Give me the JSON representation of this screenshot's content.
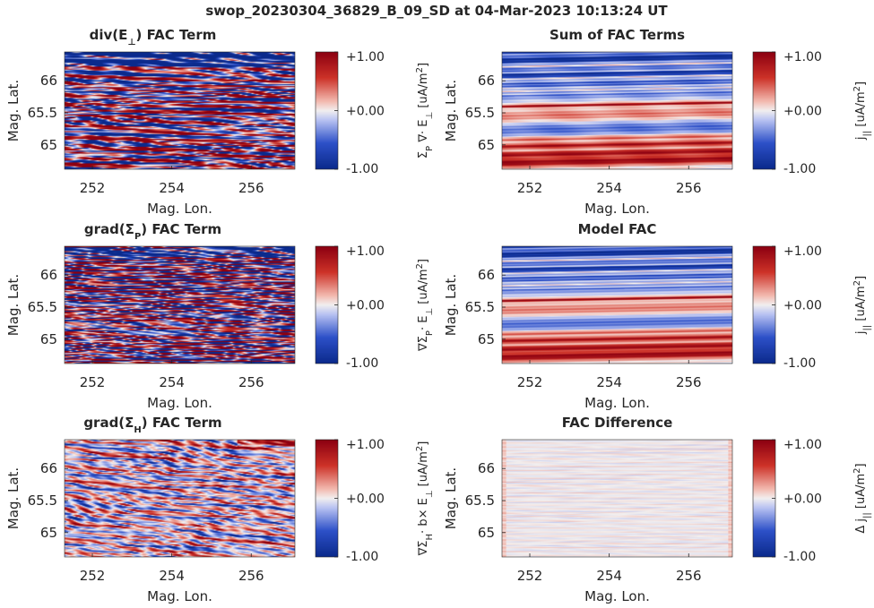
{
  "figure": {
    "title": "swop_20230304_36829_B_09_SD at 04-Mar-2023 10:13:24 UT"
  },
  "colors": {
    "neg": "#0b2a8c",
    "mid": "#f2efef",
    "pos": "#8c0011",
    "axis": "#262626"
  },
  "chart_data": [
    {
      "type": "heatmap",
      "title": "div(E⊥) FAC Term",
      "title_parts": {
        "pre": "div(E",
        "sub": "⊥",
        "post": ") FAC Term"
      },
      "xlabel": "Mag. Lon.",
      "ylabel": "Mag. Lat.",
      "xlim": [
        251.3,
        257.1
      ],
      "ylim": [
        64.62,
        66.45
      ],
      "xticks": [
        "252",
        "254",
        "256"
      ],
      "yticks": [
        "65",
        "65.5",
        "66"
      ],
      "clim": [
        -1,
        1
      ],
      "cticks": [
        "-1.00",
        "+0.00",
        "+1.00"
      ],
      "clabel": "ΣP ∇· E⊥ [uA/m2]",
      "clabel_parts": [
        [
          "Σ",
          ""
        ],
        [
          "P",
          "sub"
        ],
        [
          " ∇· E",
          ""
        ],
        [
          "⊥",
          "sub"
        ],
        [
          " [uA/m",
          ""
        ],
        [
          "2",
          "sup"
        ],
        [
          "]",
          ""
        ]
      ],
      "pattern": "div_E"
    },
    {
      "type": "heatmap",
      "title": "Sum of FAC Terms",
      "title_parts": {
        "pre": "Sum of FAC Terms",
        "sub": "",
        "post": ""
      },
      "xlabel": "Mag. Lon.",
      "ylabel": "Mag. Lat.",
      "xlim": [
        251.3,
        257.1
      ],
      "ylim": [
        64.62,
        66.45
      ],
      "xticks": [
        "252",
        "254",
        "256"
      ],
      "yticks": [
        "65",
        "65.5",
        "66"
      ],
      "clim": [
        -1,
        1
      ],
      "cticks": [
        "-1.00",
        "+0.00",
        "+1.00"
      ],
      "clabel": "j|| [uA/m2]",
      "clabel_parts": [
        [
          "j",
          ""
        ],
        [
          "||",
          "sub"
        ],
        [
          " [uA/m",
          ""
        ],
        [
          "2",
          "sup"
        ],
        [
          "]",
          ""
        ]
      ],
      "pattern": "bands"
    },
    {
      "type": "heatmap",
      "title": "grad(ΣP) FAC Term",
      "title_parts": {
        "pre": "grad(Σ",
        "sub": "P",
        "post": ") FAC Term"
      },
      "xlabel": "Mag. Lon.",
      "ylabel": "Mag. Lat.",
      "xlim": [
        251.3,
        257.1
      ],
      "ylim": [
        64.62,
        66.45
      ],
      "xticks": [
        "252",
        "254",
        "256"
      ],
      "yticks": [
        "65",
        "65.5",
        "66"
      ],
      "clim": [
        -1,
        1
      ],
      "cticks": [
        "-1.00",
        "+0.00",
        "+1.00"
      ],
      "clabel": "∇ΣP· E⊥ [uA/m2]",
      "clabel_parts": [
        [
          "∇Σ",
          ""
        ],
        [
          "P",
          "sub"
        ],
        [
          "· E",
          ""
        ],
        [
          "⊥",
          "sub"
        ],
        [
          " [uA/m",
          ""
        ],
        [
          "2",
          "sup"
        ],
        [
          "]",
          ""
        ]
      ],
      "pattern": "grad_P"
    },
    {
      "type": "heatmap",
      "title": "Model FAC",
      "title_parts": {
        "pre": "Model FAC",
        "sub": "",
        "post": ""
      },
      "xlabel": "Mag. Lon.",
      "ylabel": "Mag. Lat.",
      "xlim": [
        251.3,
        257.1
      ],
      "ylim": [
        64.62,
        66.45
      ],
      "xticks": [
        "252",
        "254",
        "256"
      ],
      "yticks": [
        "65",
        "65.5",
        "66"
      ],
      "clim": [
        -1,
        1
      ],
      "cticks": [
        "-1.00",
        "+0.00",
        "+1.00"
      ],
      "clabel": "j|| [uA/m2]",
      "clabel_parts": [
        [
          "j",
          ""
        ],
        [
          "||",
          "sub"
        ],
        [
          " [uA/m",
          ""
        ],
        [
          "2",
          "sup"
        ],
        [
          "]",
          ""
        ]
      ],
      "pattern": "bands_clean"
    },
    {
      "type": "heatmap",
      "title": "grad(ΣH) FAC Term",
      "title_parts": {
        "pre": "grad(Σ",
        "sub": "H",
        "post": ") FAC Term"
      },
      "xlabel": "Mag. Lon.",
      "ylabel": "Mag. Lat.",
      "xlim": [
        251.3,
        257.1
      ],
      "ylim": [
        64.62,
        66.45
      ],
      "xticks": [
        "252",
        "254",
        "256"
      ],
      "yticks": [
        "65",
        "65.5",
        "66"
      ],
      "clim": [
        -1,
        1
      ],
      "cticks": [
        "-1.00",
        "+0.00",
        "+1.00"
      ],
      "clabel": "∇ΣH· b× E⊥ [uA/m2]",
      "clabel_parts": [
        [
          "∇Σ",
          ""
        ],
        [
          "H",
          "sub"
        ],
        [
          "· b× E",
          ""
        ],
        [
          "⊥",
          "sub"
        ],
        [
          " [uA/m",
          ""
        ],
        [
          "2",
          "sup"
        ],
        [
          "]",
          ""
        ]
      ],
      "pattern": "grad_H"
    },
    {
      "type": "heatmap",
      "title": "FAC Difference",
      "title_parts": {
        "pre": "FAC Difference",
        "sub": "",
        "post": ""
      },
      "xlabel": "Mag. Lon.",
      "ylabel": "Mag. Lat.",
      "xlim": [
        251.3,
        257.1
      ],
      "ylim": [
        64.62,
        66.45
      ],
      "xticks": [
        "252",
        "254",
        "256"
      ],
      "yticks": [
        "65",
        "65.5",
        "66"
      ],
      "clim": [
        -1,
        1
      ],
      "cticks": [
        "-1.00",
        "+0.00",
        "+1.00"
      ],
      "clabel": "Δ j|| [uA/m2]",
      "clabel_parts": [
        [
          "Δ j",
          ""
        ],
        [
          "||",
          "sub"
        ],
        [
          " [uA/m",
          ""
        ],
        [
          "2",
          "sup"
        ],
        [
          "]",
          ""
        ]
      ],
      "pattern": "diff"
    }
  ]
}
